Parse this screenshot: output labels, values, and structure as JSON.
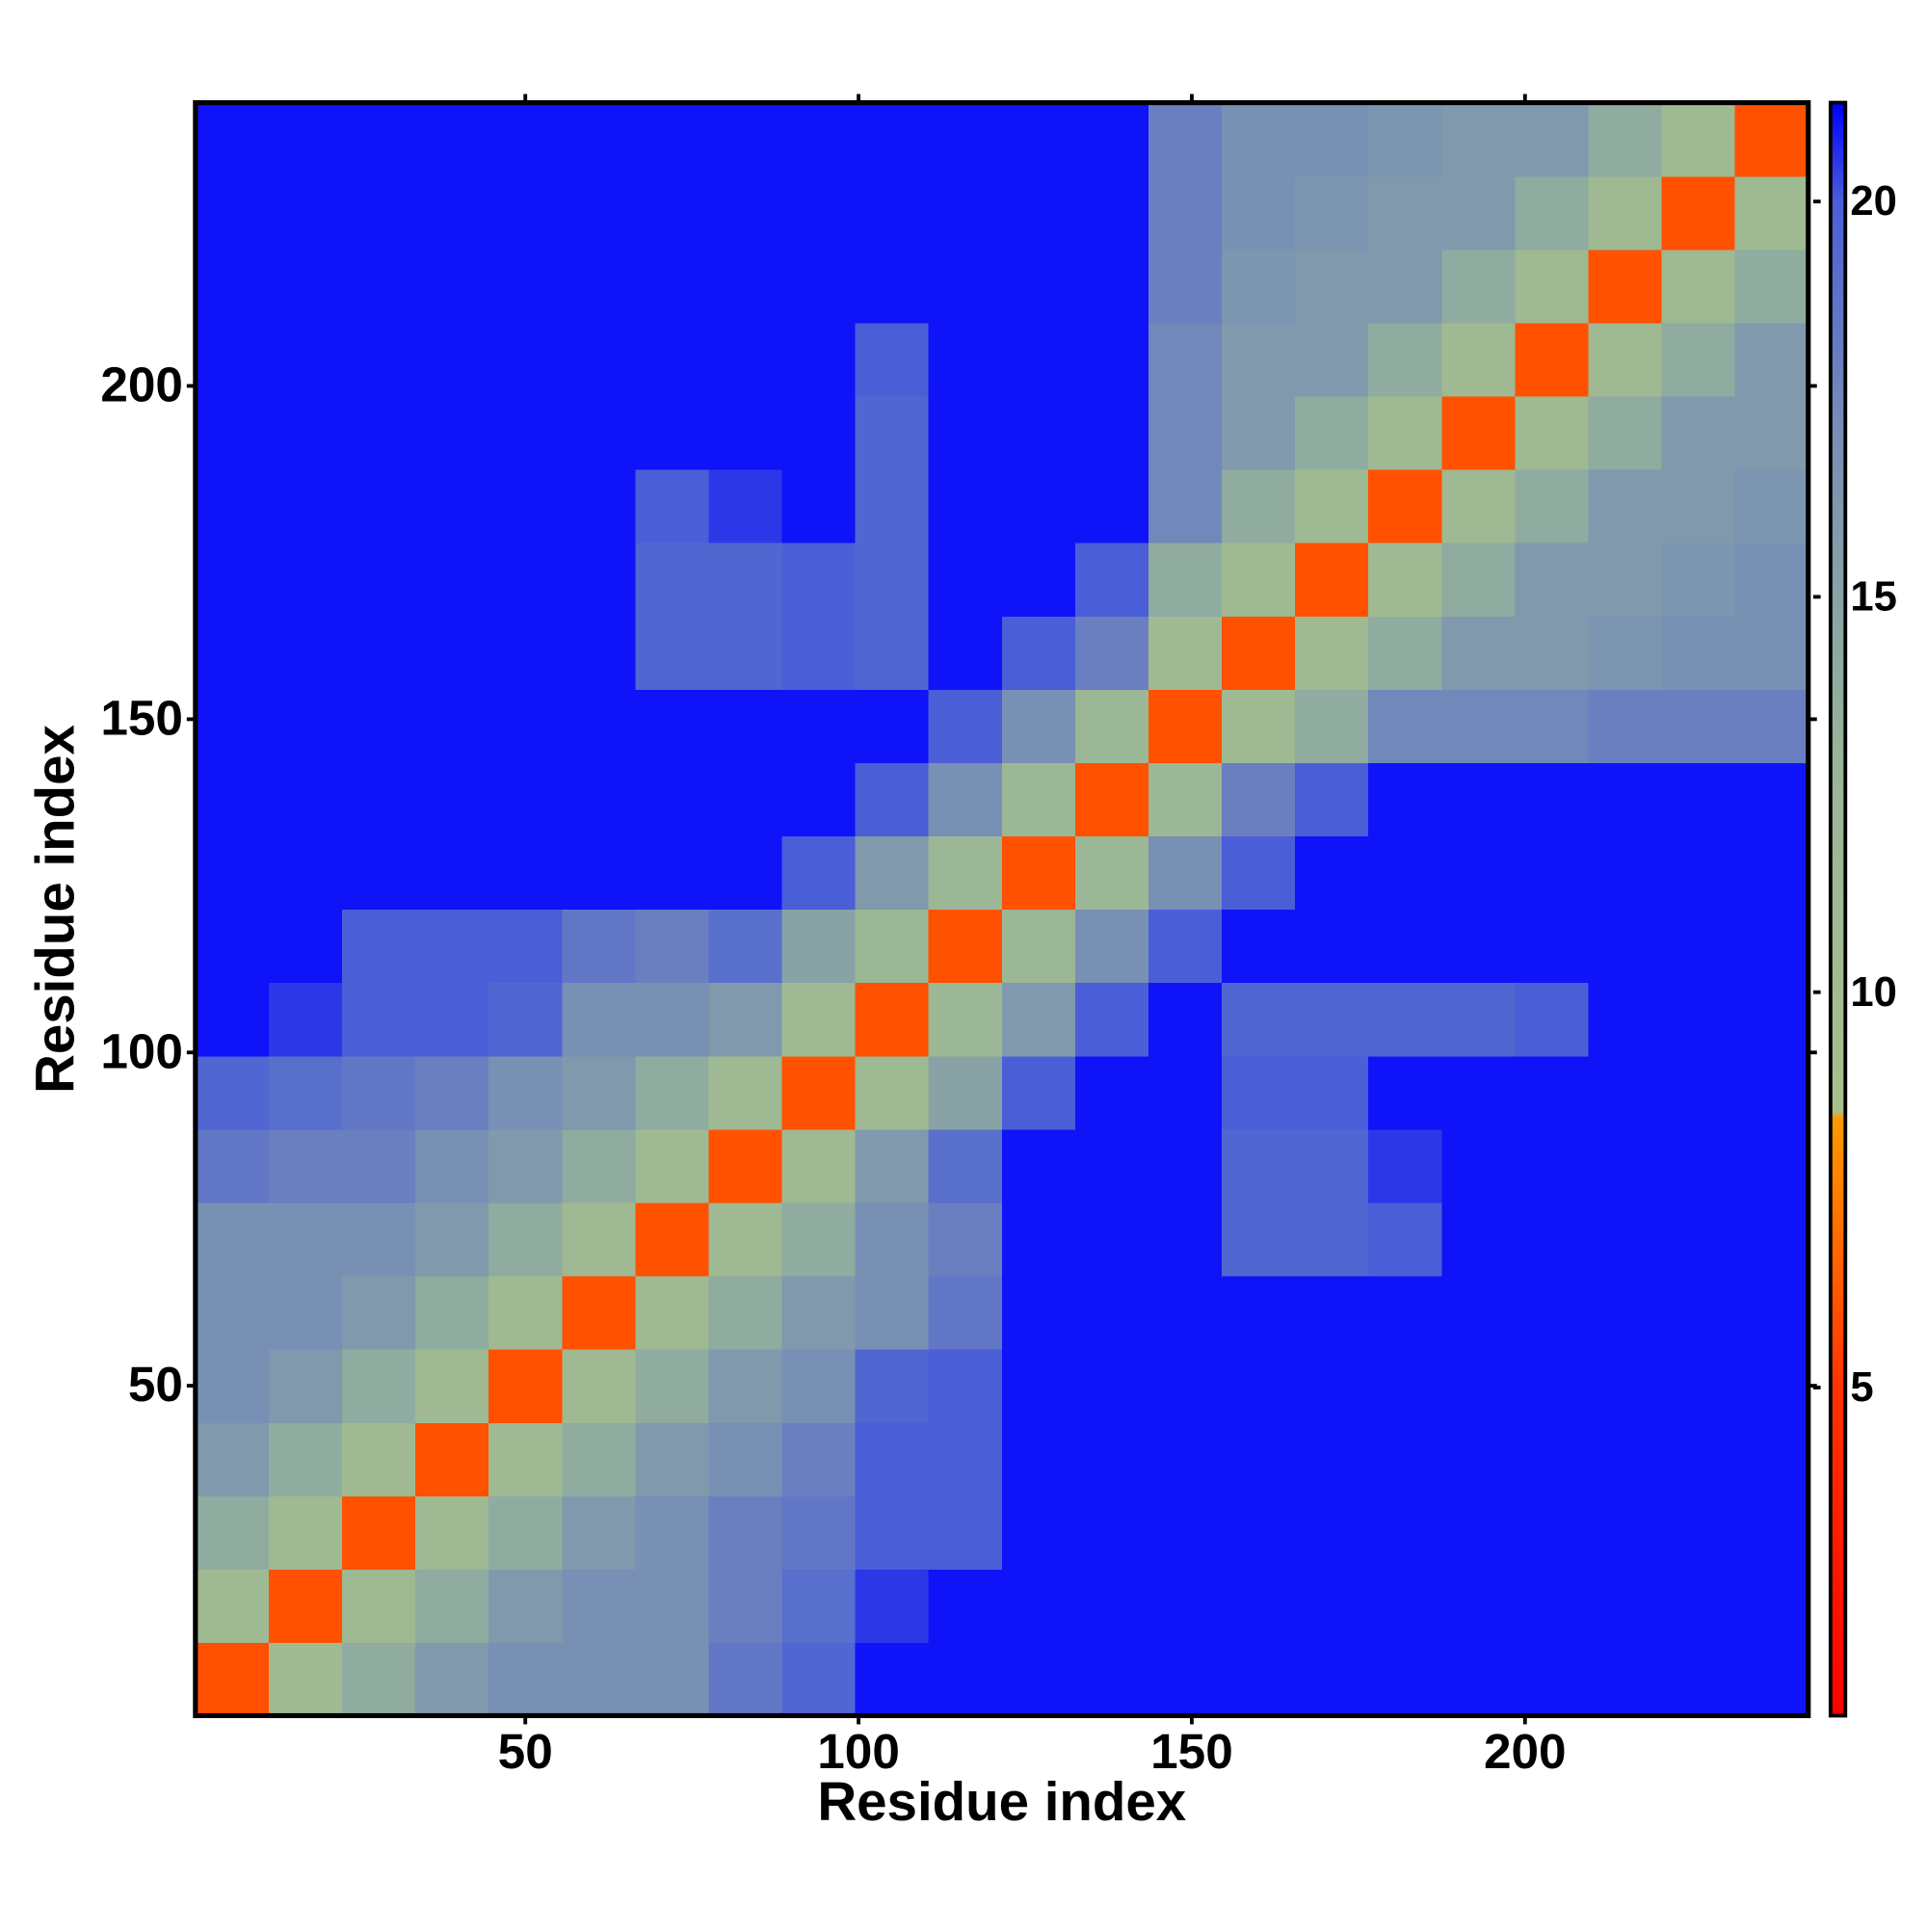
{
  "chart_data": {
    "type": "heatmap",
    "xlabel": "Residue index",
    "ylabel": "Residue index",
    "bins": [
      0.5,
      11.5,
      22.5,
      33.5,
      44.5,
      55.5,
      66.5,
      77.5,
      88.5,
      99.5,
      110.5,
      121.5,
      132.5,
      143.5,
      154.5,
      165.5,
      176.5,
      187.5,
      198.5,
      209.5,
      220.5,
      231.5,
      242.5
    ],
    "values": [
      [
        6,
        11,
        14,
        16,
        17,
        17,
        17,
        18.5,
        19.5,
        21,
        21,
        21,
        21,
        21,
        21,
        21,
        21,
        21,
        21,
        21,
        21,
        21
      ],
      [
        11,
        6,
        11,
        14,
        16,
        17,
        17,
        18,
        19,
        20.5,
        21,
        21,
        21,
        21,
        21,
        21,
        21,
        21,
        21,
        21,
        21,
        21
      ],
      [
        14,
        11,
        6,
        11,
        14,
        16,
        17,
        18,
        18.5,
        20,
        20,
        21,
        21,
        21,
        21,
        21,
        21,
        21,
        21,
        21,
        21,
        21
      ],
      [
        16,
        14,
        11,
        6,
        11,
        14,
        16,
        17,
        18,
        20,
        20,
        21,
        21,
        21,
        21,
        21,
        21,
        21,
        21,
        21,
        21,
        21
      ],
      [
        17,
        16,
        14,
        11,
        6,
        11,
        14,
        16,
        17,
        19.5,
        20,
        21,
        21,
        21,
        21,
        21,
        21,
        21,
        21,
        21,
        21,
        21
      ],
      [
        17,
        17,
        16,
        14,
        11,
        6,
        11,
        14,
        16,
        17,
        18.5,
        21,
        21,
        21,
        21,
        21,
        21,
        21,
        21,
        21,
        21,
        21
      ],
      [
        17,
        17,
        17,
        16,
        14,
        11,
        6,
        11,
        14,
        17,
        18,
        21,
        21,
        21,
        19.5,
        19.5,
        20,
        21,
        21,
        21,
        21,
        21
      ],
      [
        18.5,
        18,
        18,
        17,
        16,
        14,
        11,
        6,
        11,
        16,
        19,
        21,
        21,
        21,
        19.5,
        19.5,
        20.5,
        21,
        21,
        21,
        21,
        21
      ],
      [
        19.5,
        19,
        18.5,
        18,
        17,
        16,
        14,
        11,
        6,
        11,
        15,
        20,
        21,
        21,
        20,
        20,
        21,
        21,
        21,
        21,
        21,
        21
      ],
      [
        21,
        20.5,
        20,
        20,
        19.5,
        17,
        17,
        16,
        11,
        6,
        12,
        16,
        20,
        21,
        19.5,
        19.5,
        19.5,
        19.5,
        20,
        21,
        21,
        21
      ],
      [
        21,
        21,
        20,
        20,
        20,
        18.5,
        18,
        19,
        15,
        12,
        6,
        12,
        17,
        20,
        21,
        21,
        21,
        21,
        21,
        21,
        21,
        21
      ],
      [
        21,
        21,
        21,
        21,
        21,
        21,
        21,
        21,
        20,
        16,
        12,
        6,
        12,
        17,
        20,
        21,
        21,
        21,
        21,
        21,
        21,
        21
      ],
      [
        21,
        21,
        21,
        21,
        21,
        21,
        21,
        21,
        21,
        20,
        17,
        12,
        6,
        12,
        18,
        20,
        21,
        21,
        21,
        21,
        21,
        21
      ],
      [
        21,
        21,
        21,
        21,
        21,
        21,
        21,
        21,
        21,
        21,
        20,
        17,
        12,
        6,
        11,
        14,
        17.5,
        17.5,
        17.5,
        18,
        18,
        18
      ],
      [
        21,
        21,
        21,
        21,
        21,
        21,
        19.5,
        19.5,
        20,
        19.5,
        21,
        20,
        18,
        11,
        6,
        11,
        14,
        16,
        16,
        16.5,
        17,
        17
      ],
      [
        21,
        21,
        21,
        21,
        21,
        21,
        19.5,
        19.5,
        20,
        19.5,
        21,
        21,
        20,
        14,
        11,
        6,
        11,
        14,
        16,
        16,
        16.5,
        17
      ],
      [
        21,
        21,
        21,
        21,
        21,
        21,
        20,
        20.5,
        21,
        19.5,
        21,
        21,
        21,
        17.5,
        14,
        11,
        6,
        11,
        14,
        16,
        16,
        16.5
      ],
      [
        21,
        21,
        21,
        21,
        21,
        21,
        21,
        21,
        21,
        19.5,
        21,
        21,
        21,
        17.5,
        16,
        14,
        11,
        6,
        11,
        14,
        16,
        16
      ],
      [
        21,
        21,
        21,
        21,
        21,
        21,
        21,
        21,
        21,
        20,
        21,
        21,
        21,
        17.5,
        16,
        16,
        14,
        11,
        6,
        11,
        14,
        16
      ],
      [
        21,
        21,
        21,
        21,
        21,
        21,
        21,
        21,
        21,
        21,
        21,
        21,
        21,
        18,
        16.5,
        16,
        16,
        14,
        11,
        6,
        11,
        14
      ],
      [
        21,
        21,
        21,
        21,
        21,
        21,
        21,
        21,
        21,
        21,
        21,
        21,
        21,
        18,
        17,
        16.5,
        16,
        16,
        14,
        11,
        6,
        11
      ],
      [
        21,
        21,
        21,
        21,
        21,
        21,
        21,
        21,
        21,
        21,
        21,
        21,
        21,
        18,
        17,
        17,
        16.5,
        16,
        16,
        14,
        11,
        6
      ]
    ],
    "xlim": [
      0.5,
      242.5
    ],
    "ylim": [
      0.5,
      242.5
    ],
    "xticks": [
      50,
      100,
      150,
      200
    ],
    "yticks": [
      50,
      100,
      150,
      200
    ],
    "colorbar": {
      "lim": [
        0.85,
        21.25
      ],
      "ticks": [
        5,
        10,
        15,
        20
      ]
    },
    "colorscale": [
      [
        0.85,
        "#ff0000"
      ],
      [
        5,
        "#ff3300"
      ],
      [
        8.4,
        "#ff9900"
      ],
      [
        8.5,
        "#a8c08c"
      ],
      [
        13,
        "#98b498"
      ],
      [
        17,
        "#7890b4"
      ],
      [
        20,
        "#4a5ed8"
      ],
      [
        21.25,
        "#0000ff"
      ]
    ]
  }
}
